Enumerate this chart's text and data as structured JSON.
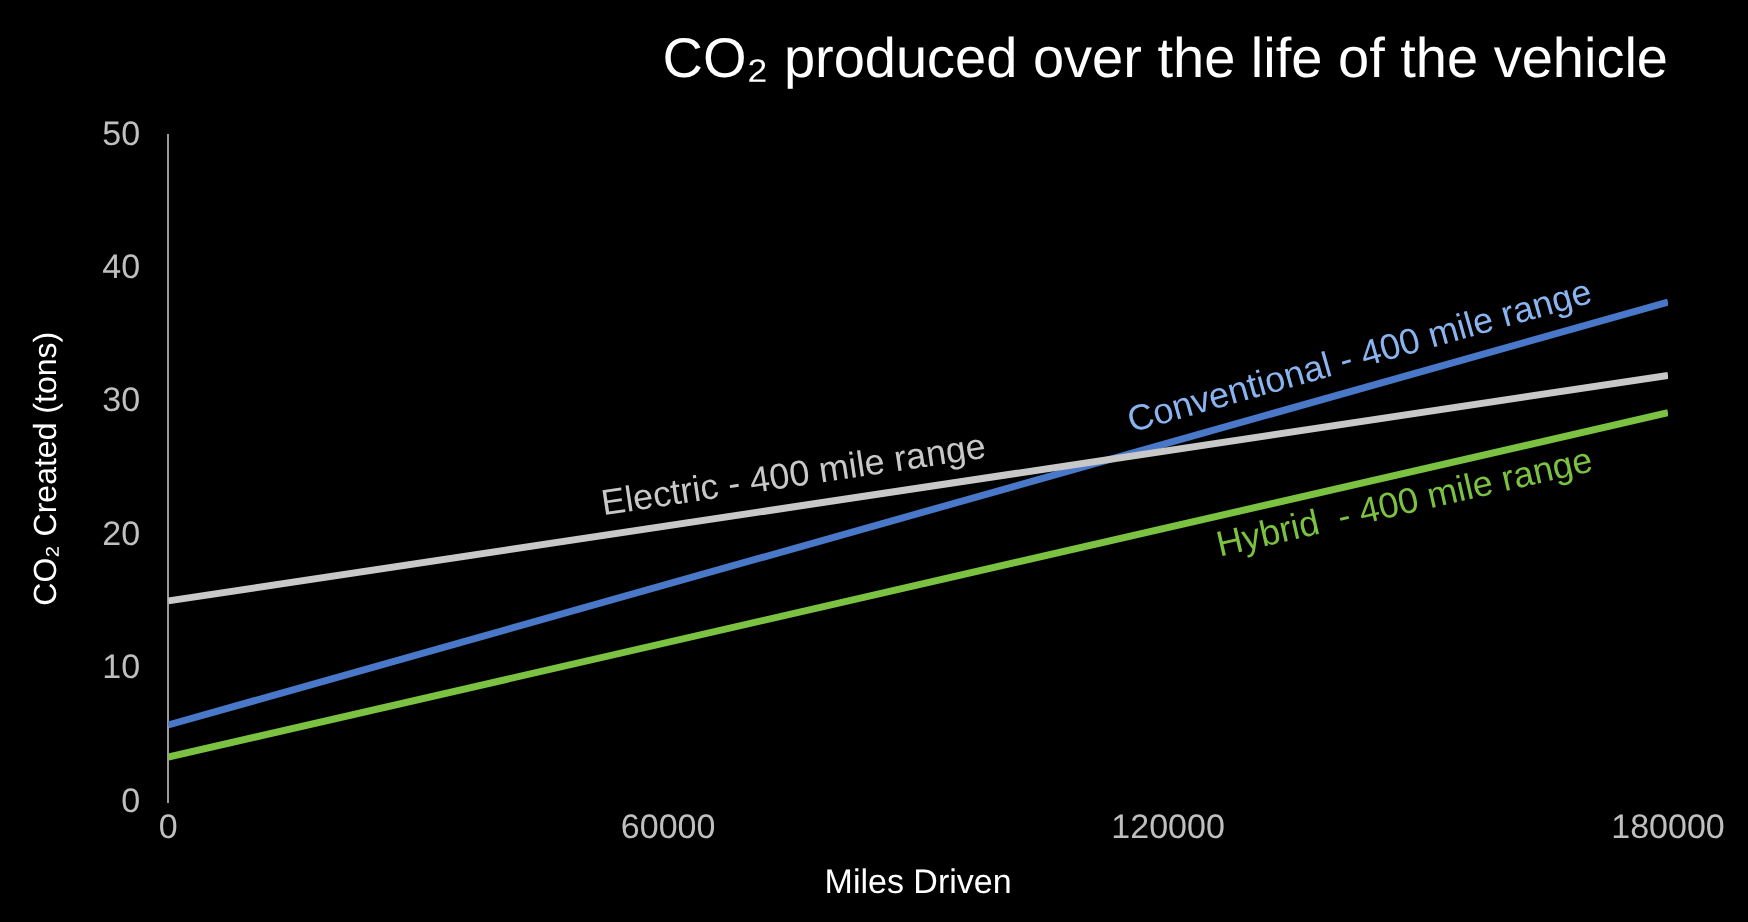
{
  "chart_data": {
    "type": "line",
    "title": "CO₂ produced over the life of the vehicle",
    "xlabel": "Miles Driven",
    "ylabel": "CO₂ Created (tons)",
    "x": [
      0,
      180000
    ],
    "xlim": [
      0,
      180000
    ],
    "xticks": [
      0,
      60000,
      120000,
      180000
    ],
    "ylim": [
      0,
      50
    ],
    "yticks": [
      0,
      10,
      20,
      30,
      40,
      50
    ],
    "grid": false,
    "legend": false,
    "marker": "none",
    "line_style": "solid",
    "series": [
      {
        "name": "Electric - 400 mile range",
        "color": "#c8c8c8",
        "values": [
          15.1,
          32.0
        ]
      },
      {
        "name": "Conventional - 400 mile range",
        "color": "#4a78c8",
        "values": [
          5.8,
          37.5
        ]
      },
      {
        "name": "Hybrid  - 400 mile range",
        "color": "#7cc242",
        "values": [
          3.4,
          29.2
        ]
      }
    ]
  }
}
